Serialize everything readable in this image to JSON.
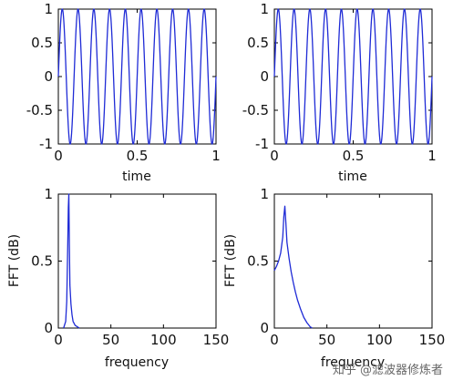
{
  "line_color": "#1f2bd6",
  "watermark_text": "知乎 @滤波器修炼者",
  "chart_data": [
    {
      "type": "line",
      "title": "",
      "xlabel": "time",
      "ylabel": "",
      "xlim": [
        0,
        1
      ],
      "ylim": [
        -1,
        1
      ],
      "xticks": [
        "0",
        "0.5",
        "1"
      ],
      "yticks": [
        "-1",
        "-0.5",
        "0",
        "0.5",
        "1"
      ],
      "series": [
        {
          "signal": "sine",
          "frequency_hz": 10,
          "amplitude": 1,
          "x": [
            0,
            1
          ]
        }
      ]
    },
    {
      "type": "line",
      "title": "",
      "xlabel": "time",
      "ylabel": "",
      "xlim": [
        0,
        1
      ],
      "ylim": [
        -1,
        1
      ],
      "xticks": [
        "0",
        "0.5",
        "1"
      ],
      "yticks": [
        "-1",
        "-0.5",
        "0",
        "0.5",
        "1"
      ],
      "series": [
        {
          "signal": "sine",
          "frequency_hz": 10,
          "amplitude": 1,
          "x": [
            0,
            1
          ]
        }
      ]
    },
    {
      "type": "line",
      "title": "",
      "xlabel": "frequency",
      "ylabel": "FFT (dB)",
      "xlim": [
        0,
        150
      ],
      "ylim": [
        0,
        1
      ],
      "xticks": [
        "0",
        "50",
        "100",
        "150"
      ],
      "yticks": [
        "0",
        "0.5",
        "1"
      ],
      "series": [
        {
          "x": [
            5,
            7,
            8,
            9,
            9.5,
            10,
            10.5,
            11,
            12,
            13,
            14,
            16,
            20
          ],
          "y": [
            0,
            0.05,
            0.2,
            0.64,
            0.9,
            1.0,
            0.62,
            0.32,
            0.18,
            0.1,
            0.05,
            0.02,
            0
          ]
        }
      ]
    },
    {
      "type": "line",
      "title": "",
      "xlabel": "frequency",
      "ylabel": "FFT (dB)",
      "xlim": [
        0,
        150
      ],
      "ylim": [
        0,
        1
      ],
      "xticks": [
        "0",
        "50",
        "100",
        "150"
      ],
      "yticks": [
        "0",
        "0.5",
        "1"
      ],
      "series": [
        {
          "x": [
            0,
            2,
            4,
            6,
            8,
            9,
            10,
            11,
            12,
            14,
            16,
            18,
            20,
            22,
            25,
            28,
            31,
            34,
            36
          ],
          "y": [
            0.43,
            0.46,
            0.5,
            0.56,
            0.68,
            0.83,
            0.91,
            0.78,
            0.64,
            0.52,
            0.42,
            0.34,
            0.27,
            0.21,
            0.14,
            0.08,
            0.04,
            0.01,
            0
          ]
        }
      ]
    }
  ]
}
